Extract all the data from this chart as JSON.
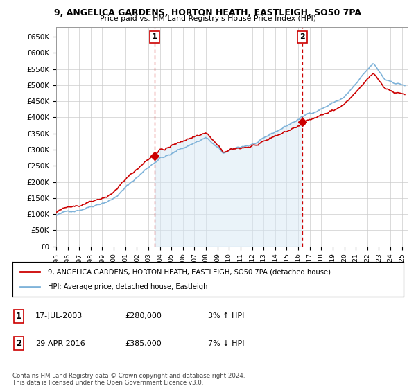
{
  "title_line1": "9, ANGELICA GARDENS, HORTON HEATH, EASTLEIGH, SO50 7PA",
  "title_line2": "Price paid vs. HM Land Registry's House Price Index (HPI)",
  "hpi_color": "#7fb3d9",
  "hpi_fill_color": "#d6e8f5",
  "price_color": "#cc0000",
  "dashed_color": "#cc0000",
  "background_color": "#ffffff",
  "grid_color": "#cccccc",
  "ylim": [
    0,
    680000
  ],
  "yticks": [
    0,
    50000,
    100000,
    150000,
    200000,
    250000,
    300000,
    350000,
    400000,
    450000,
    500000,
    550000,
    600000,
    650000
  ],
  "ytick_labels": [
    "£0",
    "£50K",
    "£100K",
    "£150K",
    "£200K",
    "£250K",
    "£300K",
    "£350K",
    "£400K",
    "£450K",
    "£500K",
    "£550K",
    "£600K",
    "£650K"
  ],
  "xmin": 1995.0,
  "xmax": 2025.5,
  "sale1_x": 2003.54,
  "sale1_y": 280000,
  "sale1_label": "1",
  "sale2_x": 2016.33,
  "sale2_y": 385000,
  "sale2_label": "2",
  "legend_line1": "9, ANGELICA GARDENS, HORTON HEATH, EASTLEIGH, SO50 7PA (detached house)",
  "legend_line2": "HPI: Average price, detached house, Eastleigh",
  "annot1_num": "1",
  "annot1_date": "17-JUL-2003",
  "annot1_price": "£280,000",
  "annot1_hpi": "3% ↑ HPI",
  "annot2_num": "2",
  "annot2_date": "29-APR-2016",
  "annot2_price": "£385,000",
  "annot2_hpi": "7% ↓ HPI",
  "footnote": "Contains HM Land Registry data © Crown copyright and database right 2024.\nThis data is licensed under the Open Government Licence v3.0."
}
